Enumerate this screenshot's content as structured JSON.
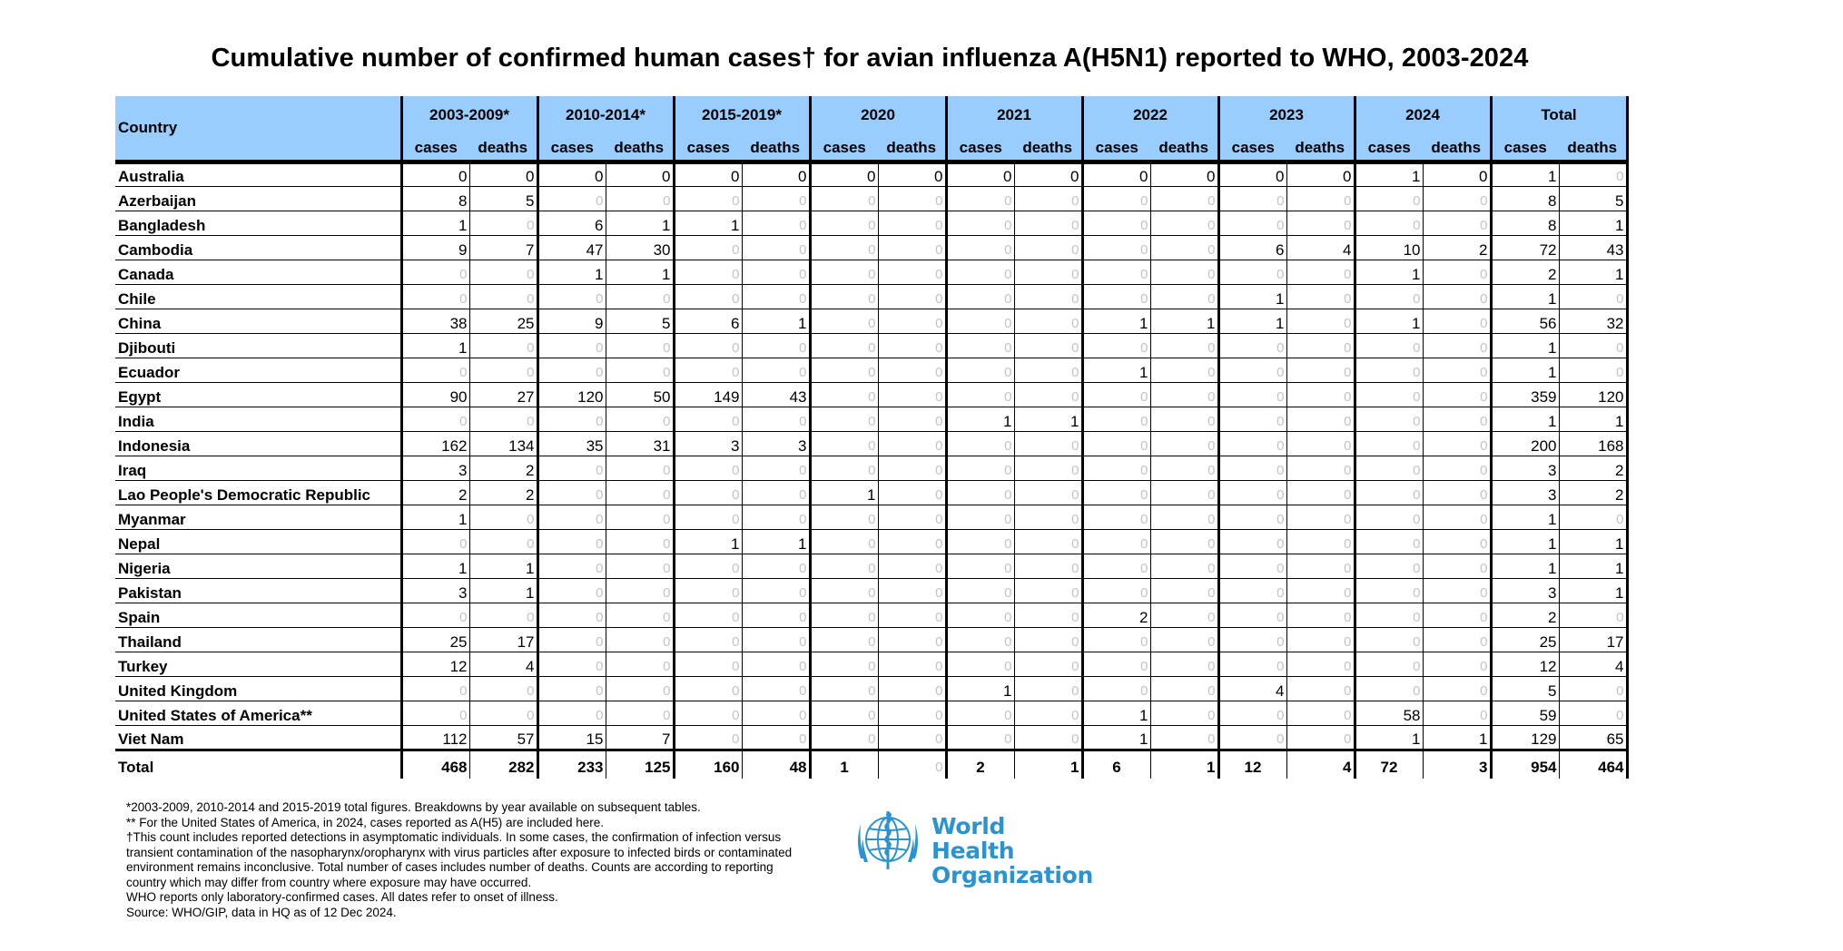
{
  "title": "Cumulative number of confirmed human cases† for avian influenza A(H5N1) reported to WHO, 2003-2024",
  "table": {
    "country_header": "Country",
    "periods": [
      "2003-2009*",
      "2010-2014*",
      "2015-2019*",
      "2020",
      "2021",
      "2022",
      "2023",
      "2024",
      "Total"
    ],
    "sub_headers": {
      "cases": "cases",
      "deaths": "deaths"
    },
    "rows": [
      {
        "country": "Australia",
        "values": [
          "0",
          "0",
          "0",
          "0",
          "0",
          "0",
          "0",
          "0",
          "0",
          "0",
          "0",
          "0",
          "0",
          "0",
          "1",
          "0",
          "1",
          "0"
        ],
        "dim": [
          false,
          false,
          false,
          false,
          false,
          false,
          false,
          false,
          false,
          false,
          false,
          false,
          false,
          false,
          false,
          false,
          false,
          true
        ]
      },
      {
        "country": "Azerbaijan",
        "values": [
          "8",
          "5",
          "0",
          "0",
          "0",
          "0",
          "0",
          "0",
          "0",
          "0",
          "0",
          "0",
          "0",
          "0",
          "0",
          "0",
          "8",
          "5"
        ],
        "dim": [
          false,
          false,
          true,
          true,
          true,
          true,
          true,
          true,
          true,
          true,
          true,
          true,
          true,
          true,
          true,
          true,
          false,
          false
        ]
      },
      {
        "country": "Bangladesh",
        "values": [
          "1",
          "0",
          "6",
          "1",
          "1",
          "0",
          "0",
          "0",
          "0",
          "0",
          "0",
          "0",
          "0",
          "0",
          "0",
          "0",
          "8",
          "1"
        ],
        "dim": [
          false,
          true,
          false,
          false,
          false,
          true,
          true,
          true,
          true,
          true,
          true,
          true,
          true,
          true,
          true,
          true,
          false,
          false
        ]
      },
      {
        "country": "Cambodia",
        "values": [
          "9",
          "7",
          "47",
          "30",
          "0",
          "0",
          "0",
          "0",
          "0",
          "0",
          "0",
          "0",
          "6",
          "4",
          "10",
          "2",
          "72",
          "43"
        ],
        "dim": [
          false,
          false,
          false,
          false,
          true,
          true,
          true,
          true,
          true,
          true,
          true,
          true,
          false,
          false,
          false,
          false,
          false,
          false
        ]
      },
      {
        "country": "Canada",
        "values": [
          "0",
          "0",
          "1",
          "1",
          "0",
          "0",
          "0",
          "0",
          "0",
          "0",
          "0",
          "0",
          "0",
          "0",
          "1",
          "0",
          "2",
          "1"
        ],
        "dim": [
          true,
          true,
          false,
          false,
          true,
          true,
          true,
          true,
          true,
          true,
          true,
          true,
          true,
          true,
          false,
          true,
          false,
          false
        ]
      },
      {
        "country": "Chile",
        "values": [
          "0",
          "0",
          "0",
          "0",
          "0",
          "0",
          "0",
          "0",
          "0",
          "0",
          "0",
          "0",
          "1",
          "0",
          "0",
          "0",
          "1",
          "0"
        ],
        "dim": [
          true,
          true,
          true,
          true,
          true,
          true,
          true,
          true,
          true,
          true,
          true,
          true,
          false,
          true,
          true,
          true,
          false,
          true
        ]
      },
      {
        "country": "China",
        "values": [
          "38",
          "25",
          "9",
          "5",
          "6",
          "1",
          "0",
          "0",
          "0",
          "0",
          "1",
          "1",
          "1",
          "0",
          "1",
          "0",
          "56",
          "32"
        ],
        "dim": [
          false,
          false,
          false,
          false,
          false,
          false,
          true,
          true,
          true,
          true,
          false,
          false,
          false,
          true,
          false,
          true,
          false,
          false
        ]
      },
      {
        "country": "Djibouti",
        "values": [
          "1",
          "0",
          "0",
          "0",
          "0",
          "0",
          "0",
          "0",
          "0",
          "0",
          "0",
          "0",
          "0",
          "0",
          "0",
          "0",
          "1",
          "0"
        ],
        "dim": [
          false,
          true,
          true,
          true,
          true,
          true,
          true,
          true,
          true,
          true,
          true,
          true,
          true,
          true,
          true,
          true,
          false,
          true
        ]
      },
      {
        "country": "Ecuador",
        "values": [
          "0",
          "0",
          "0",
          "0",
          "0",
          "0",
          "0",
          "0",
          "0",
          "0",
          "1",
          "0",
          "0",
          "0",
          "0",
          "0",
          "1",
          "0"
        ],
        "dim": [
          true,
          true,
          true,
          true,
          true,
          true,
          true,
          true,
          true,
          true,
          false,
          true,
          true,
          true,
          true,
          true,
          false,
          true
        ]
      },
      {
        "country": "Egypt",
        "values": [
          "90",
          "27",
          "120",
          "50",
          "149",
          "43",
          "0",
          "0",
          "0",
          "0",
          "0",
          "0",
          "0",
          "0",
          "0",
          "0",
          "359",
          "120"
        ],
        "dim": [
          false,
          false,
          false,
          false,
          false,
          false,
          true,
          true,
          true,
          true,
          true,
          true,
          true,
          true,
          true,
          true,
          false,
          false
        ]
      },
      {
        "country": "India",
        "values": [
          "0",
          "0",
          "0",
          "0",
          "0",
          "0",
          "0",
          "0",
          "1",
          "1",
          "0",
          "0",
          "0",
          "0",
          "0",
          "0",
          "1",
          "1"
        ],
        "dim": [
          true,
          true,
          true,
          true,
          true,
          true,
          true,
          true,
          false,
          false,
          true,
          true,
          true,
          true,
          true,
          true,
          false,
          false
        ]
      },
      {
        "country": "Indonesia",
        "values": [
          "162",
          "134",
          "35",
          "31",
          "3",
          "3",
          "0",
          "0",
          "0",
          "0",
          "0",
          "0",
          "0",
          "0",
          "0",
          "0",
          "200",
          "168"
        ],
        "dim": [
          false,
          false,
          false,
          false,
          false,
          false,
          true,
          true,
          true,
          true,
          true,
          true,
          true,
          true,
          true,
          true,
          false,
          false
        ]
      },
      {
        "country": "Iraq",
        "values": [
          "3",
          "2",
          "0",
          "0",
          "0",
          "0",
          "0",
          "0",
          "0",
          "0",
          "0",
          "0",
          "0",
          "0",
          "0",
          "0",
          "3",
          "2"
        ],
        "dim": [
          false,
          false,
          true,
          true,
          true,
          true,
          true,
          true,
          true,
          true,
          true,
          true,
          true,
          true,
          true,
          true,
          false,
          false
        ]
      },
      {
        "country": "Lao People's Democratic Republic",
        "values": [
          "2",
          "2",
          "0",
          "0",
          "0",
          "0",
          "1",
          "0",
          "0",
          "0",
          "0",
          "0",
          "0",
          "0",
          "0",
          "0",
          "3",
          "2"
        ],
        "dim": [
          false,
          false,
          true,
          true,
          true,
          true,
          false,
          true,
          true,
          true,
          true,
          true,
          true,
          true,
          true,
          true,
          false,
          false
        ]
      },
      {
        "country": "Myanmar",
        "values": [
          "1",
          "0",
          "0",
          "0",
          "0",
          "0",
          "0",
          "0",
          "0",
          "0",
          "0",
          "0",
          "0",
          "0",
          "0",
          "0",
          "1",
          "0"
        ],
        "dim": [
          false,
          true,
          true,
          true,
          true,
          true,
          true,
          true,
          true,
          true,
          true,
          true,
          true,
          true,
          true,
          true,
          false,
          true
        ]
      },
      {
        "country": "Nepal",
        "values": [
          "0",
          "0",
          "0",
          "0",
          "1",
          "1",
          "0",
          "0",
          "0",
          "0",
          "0",
          "0",
          "0",
          "0",
          "0",
          "0",
          "1",
          "1"
        ],
        "dim": [
          true,
          true,
          true,
          true,
          false,
          false,
          true,
          true,
          true,
          true,
          true,
          true,
          true,
          true,
          true,
          true,
          false,
          false
        ]
      },
      {
        "country": "Nigeria",
        "values": [
          "1",
          "1",
          "0",
          "0",
          "0",
          "0",
          "0",
          "0",
          "0",
          "0",
          "0",
          "0",
          "0",
          "0",
          "0",
          "0",
          "1",
          "1"
        ],
        "dim": [
          false,
          false,
          true,
          true,
          true,
          true,
          true,
          true,
          true,
          true,
          true,
          true,
          true,
          true,
          true,
          true,
          false,
          false
        ]
      },
      {
        "country": "Pakistan",
        "values": [
          "3",
          "1",
          "0",
          "0",
          "0",
          "0",
          "0",
          "0",
          "0",
          "0",
          "0",
          "0",
          "0",
          "0",
          "0",
          "0",
          "3",
          "1"
        ],
        "dim": [
          false,
          false,
          true,
          true,
          true,
          true,
          true,
          true,
          true,
          true,
          true,
          true,
          true,
          true,
          true,
          true,
          false,
          false
        ]
      },
      {
        "country": "Spain",
        "values": [
          "0",
          "0",
          "0",
          "0",
          "0",
          "0",
          "0",
          "0",
          "0",
          "0",
          "2",
          "0",
          "0",
          "0",
          "0",
          "0",
          "2",
          "0"
        ],
        "dim": [
          true,
          true,
          true,
          true,
          true,
          true,
          true,
          true,
          true,
          true,
          false,
          true,
          true,
          true,
          true,
          true,
          false,
          true
        ]
      },
      {
        "country": "Thailand",
        "values": [
          "25",
          "17",
          "0",
          "0",
          "0",
          "0",
          "0",
          "0",
          "0",
          "0",
          "0",
          "0",
          "0",
          "0",
          "0",
          "0",
          "25",
          "17"
        ],
        "dim": [
          false,
          false,
          true,
          true,
          true,
          true,
          true,
          true,
          true,
          true,
          true,
          true,
          true,
          true,
          true,
          true,
          false,
          false
        ]
      },
      {
        "country": "Turkey",
        "values": [
          "12",
          "4",
          "0",
          "0",
          "0",
          "0",
          "0",
          "0",
          "0",
          "0",
          "0",
          "0",
          "0",
          "0",
          "0",
          "0",
          "12",
          "4"
        ],
        "dim": [
          false,
          false,
          true,
          true,
          true,
          true,
          true,
          true,
          true,
          true,
          true,
          true,
          true,
          true,
          true,
          true,
          false,
          false
        ]
      },
      {
        "country": "United Kingdom",
        "values": [
          "0",
          "0",
          "0",
          "0",
          "0",
          "0",
          "0",
          "0",
          "1",
          "0",
          "0",
          "0",
          "4",
          "0",
          "0",
          "0",
          "5",
          "0"
        ],
        "dim": [
          true,
          true,
          true,
          true,
          true,
          true,
          true,
          true,
          false,
          true,
          true,
          true,
          false,
          true,
          true,
          true,
          false,
          true
        ]
      },
      {
        "country": "United States of America**",
        "values": [
          "0",
          "0",
          "0",
          "0",
          "0",
          "0",
          "0",
          "0",
          "0",
          "0",
          "1",
          "0",
          "0",
          "0",
          "58",
          "0",
          "59",
          "0"
        ],
        "dim": [
          true,
          true,
          true,
          true,
          true,
          true,
          true,
          true,
          true,
          true,
          false,
          true,
          true,
          true,
          false,
          true,
          false,
          true
        ]
      },
      {
        "country": "Viet Nam",
        "values": [
          "112",
          "57",
          "15",
          "7",
          "0",
          "0",
          "0",
          "0",
          "0",
          "0",
          "1",
          "0",
          "0",
          "0",
          "1",
          "1",
          "129",
          "65"
        ],
        "dim": [
          false,
          false,
          false,
          false,
          true,
          true,
          true,
          true,
          true,
          true,
          false,
          true,
          true,
          true,
          false,
          false,
          false,
          false
        ]
      }
    ],
    "total_row": {
      "label": "Total",
      "values": [
        "468",
        "282",
        "233",
        "125",
        "160",
        "48",
        "1",
        "0",
        "2",
        "1",
        "6",
        "1",
        "12",
        "4",
        "72",
        "3",
        "954",
        "464"
      ],
      "dim": [
        false,
        false,
        false,
        false,
        false,
        false,
        false,
        true,
        false,
        false,
        false,
        false,
        false,
        false,
        false,
        false,
        false,
        false
      ]
    }
  },
  "footnotes": [
    "*2003-2009, 2010-2014 and 2015-2019 total figures. Breakdowns by year available on subsequent tables.",
    "** For the United States of America, in 2024, cases reported as A(H5) are included here.",
    "†This count includes reported detections in asymptomatic individuals. In some cases, the confirmation of infection versus transient contamination of the nasopharynx/oropharynx with virus particles after exposure to infected birds or contaminated environment remains inconclusive. Total number of cases includes number of deaths. Counts are according to reporting country which may differ from country where exposure may have occurred.",
    "WHO reports only laboratory-confirmed cases. All dates refer to onset of illness.",
    "Source: WHO/GIP, data in HQ as of 12 Dec 2024."
  ],
  "logo": {
    "line1": "World Health",
    "line2": "Organization",
    "icon": "who-emblem-icon",
    "color": "#2b93cf"
  },
  "colors": {
    "header_bg": "#99ccff",
    "zero_text": "#c4c4c4"
  }
}
